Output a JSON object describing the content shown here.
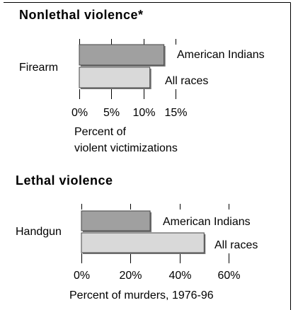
{
  "chart_data": [
    {
      "type": "bar",
      "orientation": "horizontal",
      "title": "Nonlethal violence*",
      "categories": [
        "Firearm"
      ],
      "series": [
        {
          "name": "American Indians",
          "color": "#a0a0a0",
          "values": [
            13.2
          ]
        },
        {
          "name": "All races",
          "color": "#d9d9d9",
          "values": [
            11
          ]
        }
      ],
      "xlim": [
        0,
        15
      ],
      "xticks": [
        {
          "value": 0,
          "label": "0%"
        },
        {
          "value": 5,
          "label": "5%"
        },
        {
          "value": 10,
          "label": "10%"
        },
        {
          "value": 15,
          "label": "15%"
        }
      ],
      "xlabel": "Percent of\nviolent victimizations"
    },
    {
      "type": "bar",
      "orientation": "horizontal",
      "title": "Lethal violence",
      "categories": [
        "Handgun"
      ],
      "series": [
        {
          "name": "American Indians",
          "color": "#a0a0a0",
          "values": [
            28
          ]
        },
        {
          "name": "All races",
          "color": "#d9d9d9",
          "values": [
            50
          ]
        }
      ],
      "xlim": [
        0,
        60
      ],
      "xticks": [
        {
          "value": 0,
          "label": "0%"
        },
        {
          "value": 20,
          "label": "20%"
        },
        {
          "value": 40,
          "label": "40%"
        },
        {
          "value": 60,
          "label": "60%"
        }
      ],
      "xlabel": "Percent of murders, 1976-96"
    }
  ]
}
